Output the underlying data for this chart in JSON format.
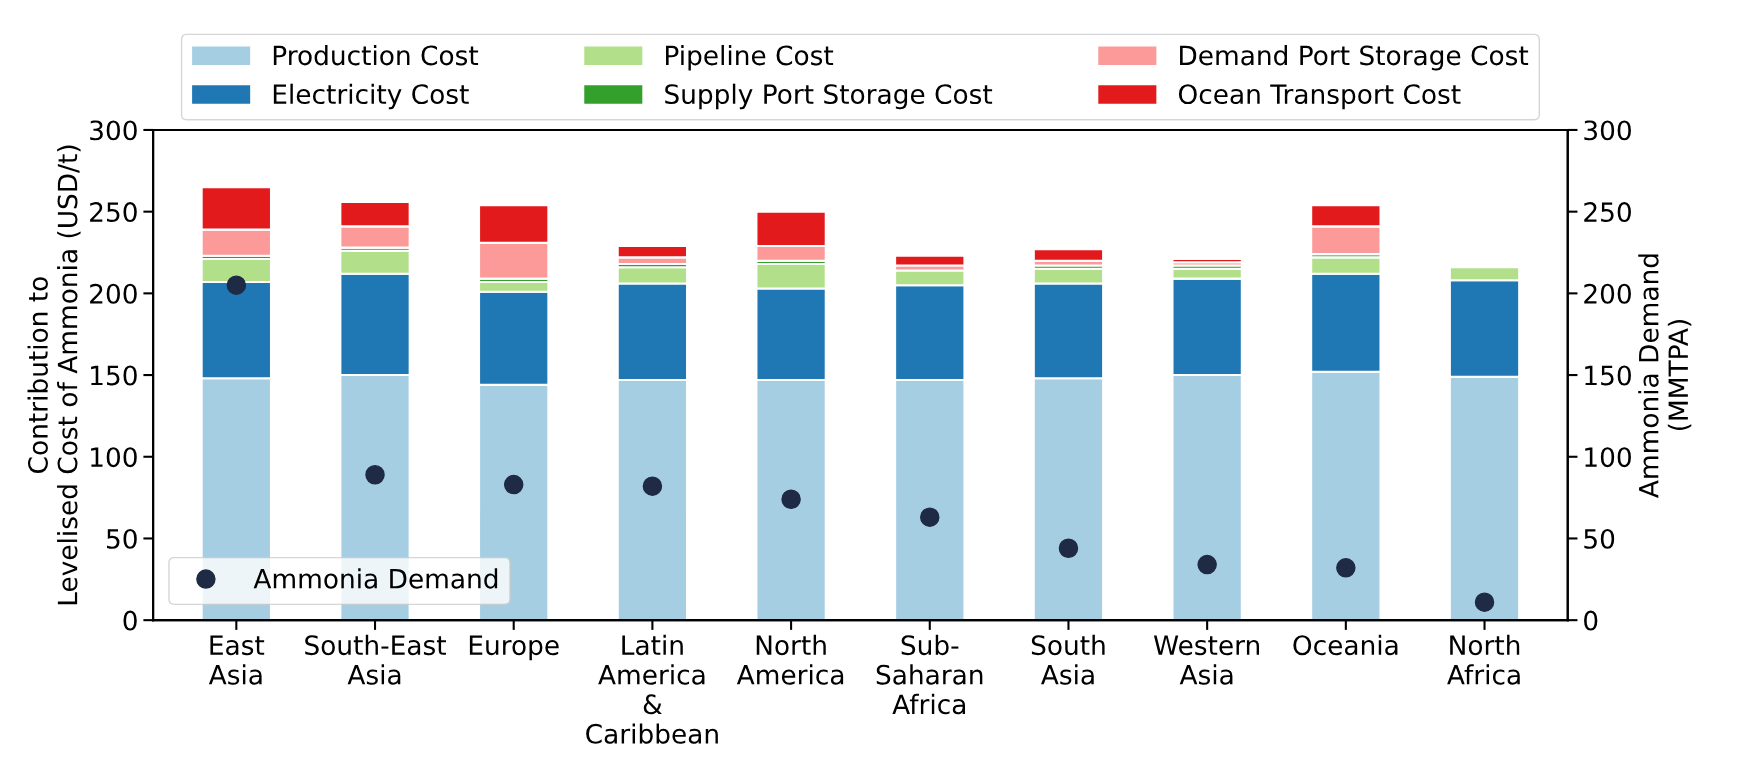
{
  "chart_data": {
    "type": "bar",
    "stacked": true,
    "categories": [
      "East\nAsia",
      "South-East\nAsia",
      "Europe",
      "Latin\nAmerica\n&\nCaribbean",
      "North\nAmerica",
      "Sub-\nSaharan\nAfrica",
      "South\nAsia",
      "Western\nAsia",
      "Oceania",
      "North\nAfrica"
    ],
    "ylabel": "Contribution to\nLevelised Cost of Ammonia (USD/t)",
    "y2label": "Ammonia Demand\n(MMTPA)",
    "ylim": [
      0,
      300
    ],
    "yticks": [
      0,
      50,
      100,
      150,
      200,
      250,
      300
    ],
    "y2lim": [
      0,
      300
    ],
    "y2ticks": [
      0,
      50,
      100,
      150,
      200,
      250,
      300
    ],
    "legend": "top",
    "grid": false,
    "series": [
      {
        "name": "Production Cost",
        "color": "#a6cee3",
        "values": [
          148,
          150,
          144,
          147,
          147,
          147,
          148,
          150,
          152,
          149
        ]
      },
      {
        "name": "Electricity Cost",
        "color": "#1f78b4",
        "values": [
          59,
          62,
          57,
          59,
          56,
          58,
          58,
          59,
          60,
          59
        ]
      },
      {
        "name": "Pipeline Cost",
        "color": "#b2df8a",
        "values": [
          14,
          14,
          6,
          10,
          15,
          9,
          9,
          6,
          10,
          8
        ]
      },
      {
        "name": "Supply Port Storage Cost",
        "color": "#33a02c",
        "values": [
          2,
          2,
          2,
          2,
          2,
          null,
          2,
          2,
          2,
          null
        ]
      },
      {
        "name": "Demand Port Storage Cost",
        "color": "#fb9a99",
        "values": [
          16,
          13,
          22,
          4,
          9,
          3,
          3,
          2,
          17,
          0
        ]
      },
      {
        "name": "Ocean Transport Cost",
        "color": "#e31a1c",
        "values": [
          26,
          15,
          23,
          7,
          21,
          6,
          7,
          2,
          13,
          0
        ]
      },
      {
        "name": "Ammonia Demand",
        "type": "scatter",
        "axis": "y2",
        "color": "#1f2a44",
        "marker": "circle",
        "values": [
          205,
          89,
          83,
          82,
          74,
          63,
          44,
          34,
          32,
          11
        ]
      }
    ]
  }
}
